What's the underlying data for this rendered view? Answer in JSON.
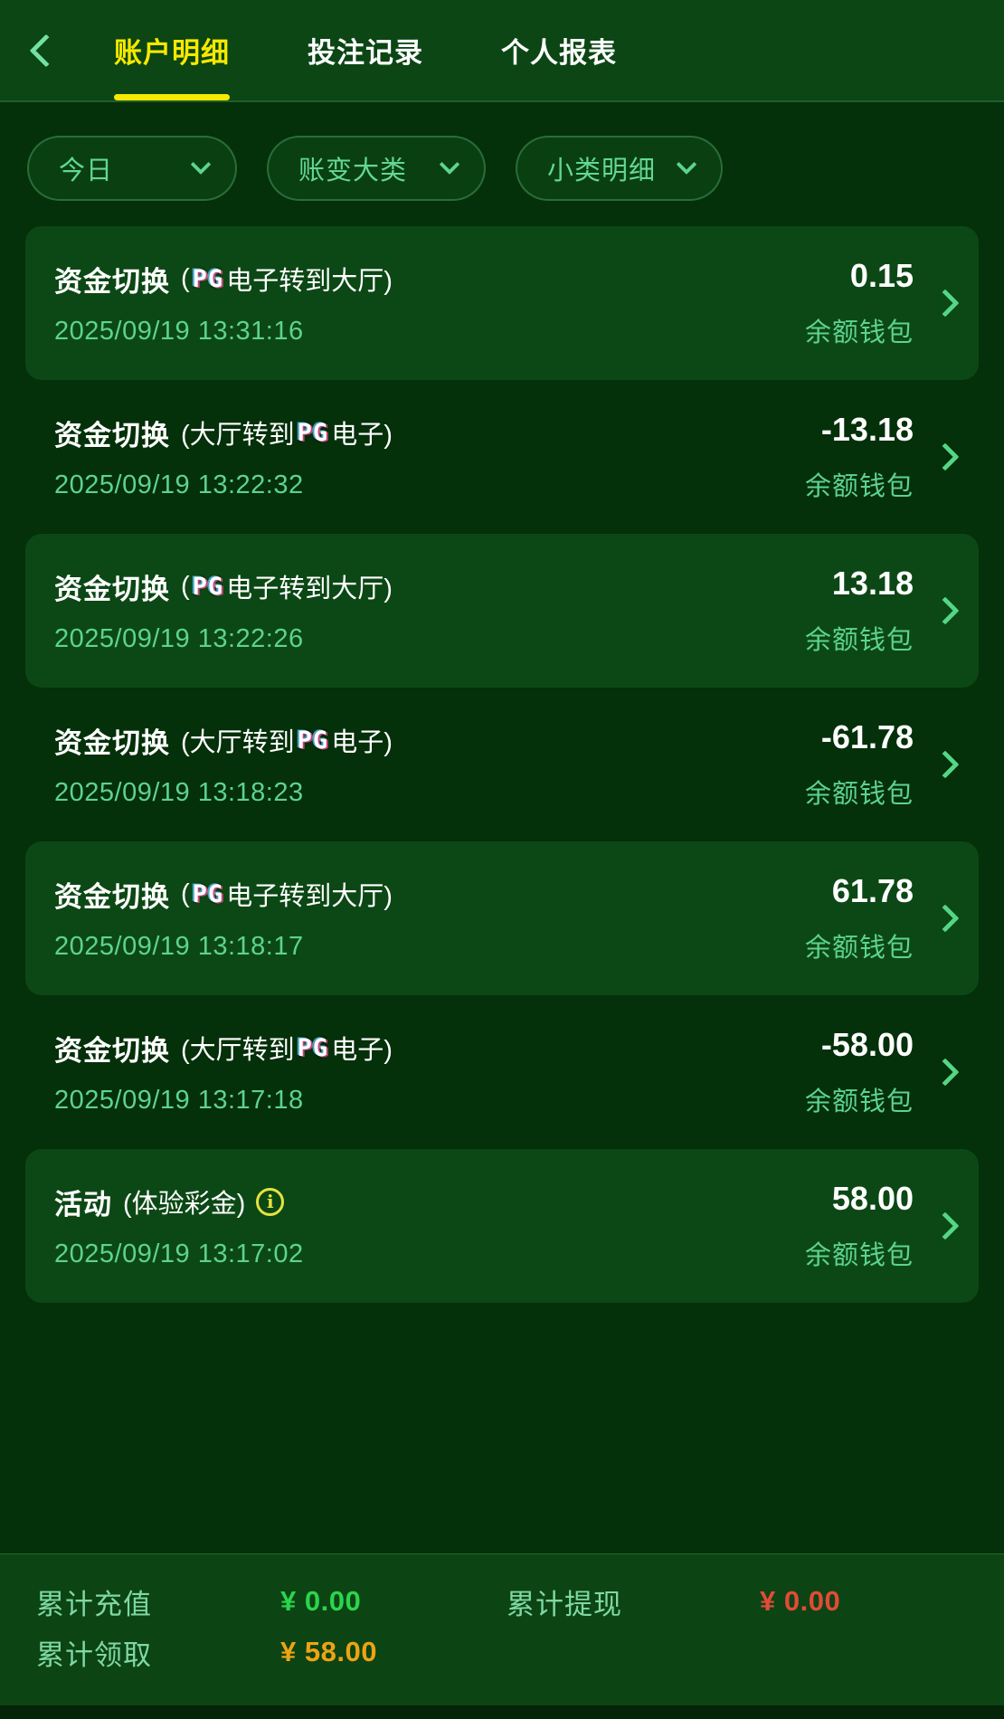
{
  "header": {
    "tabs": [
      {
        "label": "账户明细",
        "active": true
      },
      {
        "label": "投注记录",
        "active": false
      },
      {
        "label": "个人报表",
        "active": false
      }
    ]
  },
  "filters": [
    {
      "label": "今日"
    },
    {
      "label": "账变大类"
    },
    {
      "label": "小类明细"
    }
  ],
  "pg_logo_text": "PG",
  "info_icon_glyph": "i",
  "rows": [
    {
      "title": "资金切换",
      "detail_prefix": "(",
      "pg_logo": true,
      "detail_suffix": "电子转到大厅)",
      "info_icon": false,
      "datetime": "2025/09/19 13:31:16",
      "amount": "0.15",
      "wallet": "余额钱包",
      "highlighted": true
    },
    {
      "title": "资金切换",
      "detail_prefix": "(大厅转到",
      "pg_logo": true,
      "detail_suffix": "电子)",
      "info_icon": false,
      "datetime": "2025/09/19 13:22:32",
      "amount": "-13.18",
      "wallet": "余额钱包",
      "highlighted": false
    },
    {
      "title": "资金切换",
      "detail_prefix": "(",
      "pg_logo": true,
      "detail_suffix": "电子转到大厅)",
      "info_icon": false,
      "datetime": "2025/09/19 13:22:26",
      "amount": "13.18",
      "wallet": "余额钱包",
      "highlighted": true
    },
    {
      "title": "资金切换",
      "detail_prefix": "(大厅转到",
      "pg_logo": true,
      "detail_suffix": "电子)",
      "info_icon": false,
      "datetime": "2025/09/19 13:18:23",
      "amount": "-61.78",
      "wallet": "余额钱包",
      "highlighted": false
    },
    {
      "title": "资金切换",
      "detail_prefix": "(",
      "pg_logo": true,
      "detail_suffix": "电子转到大厅)",
      "info_icon": false,
      "datetime": "2025/09/19 13:18:17",
      "amount": "61.78",
      "wallet": "余额钱包",
      "highlighted": true
    },
    {
      "title": "资金切换",
      "detail_prefix": "(大厅转到",
      "pg_logo": true,
      "detail_suffix": "电子)",
      "info_icon": false,
      "datetime": "2025/09/19 13:17:18",
      "amount": "-58.00",
      "wallet": "余额钱包",
      "highlighted": false
    },
    {
      "title": "活动",
      "detail_prefix": "(体验彩金)",
      "pg_logo": false,
      "detail_suffix": "",
      "info_icon": true,
      "datetime": "2025/09/19 13:17:02",
      "amount": "58.00",
      "wallet": "余额钱包",
      "highlighted": true
    }
  ],
  "summary": {
    "deposit_label": "累计充值",
    "deposit_value": "¥ 0.00",
    "withdraw_label": "累计提现",
    "withdraw_value": "¥ 0.00",
    "claim_label": "累计领取",
    "claim_value": "¥ 58.00"
  },
  "colors": {
    "page_bg": "#04300a",
    "header_bg": "#0b4614",
    "card_bg": "#0c4815",
    "panel_bg": "#0c4414",
    "active_tab": "#f6e800",
    "mint_text": "#5dd391",
    "deposit_value": "#2bd44d",
    "withdraw_value": "#e44a38",
    "claim_value": "#efa313"
  }
}
